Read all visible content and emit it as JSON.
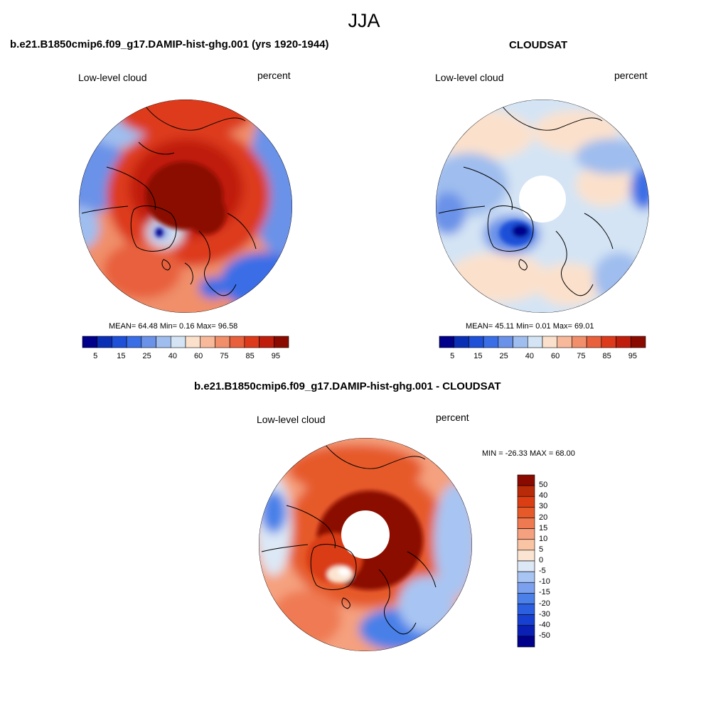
{
  "title": "JJA",
  "colors": {
    "sequential": [
      "#00008b",
      "#0a2fb5",
      "#1e50d8",
      "#3a6ee6",
      "#6a92e8",
      "#9fbdee",
      "#d4e4f4",
      "#fbe1cc",
      "#f8b99a",
      "#f08f6a",
      "#e8603c",
      "#dd3a1c",
      "#c01e0c",
      "#8b0a00"
    ],
    "diverging": [
      "#00008b",
      "#0a20b5",
      "#1840d0",
      "#2b5fe0",
      "#4a80e8",
      "#7aa0ee",
      "#a8c4f2",
      "#dce8f6",
      "#fbe5d2",
      "#f9c4a4",
      "#f5a07e",
      "#ef7a52",
      "#e65a2a",
      "#da3e12",
      "#b82a08",
      "#8b0a00"
    ],
    "panel_bg": "#ffffff",
    "coast": "#000000"
  },
  "panels": [
    {
      "title": "b.e21.B1850cmip6.f09_g17.DAMIP-hist-ghg.001 (yrs 1920-1944)",
      "left_label": "Low-level cloud",
      "right_label": "percent",
      "stats": "MEAN=  64.48  Min=   0.16  Max=  96.58",
      "labelbar_ticks": [
        "5",
        "15",
        "25",
        "40",
        "60",
        "75",
        "85",
        "95"
      ]
    },
    {
      "title": "CLOUDSAT",
      "left_label": "Low-level cloud",
      "right_label": "percent",
      "stats": "MEAN=  45.11  Min=   0.01  Max=  69.01",
      "labelbar_ticks": [
        "5",
        "15",
        "25",
        "40",
        "60",
        "75",
        "85",
        "95"
      ]
    },
    {
      "title": "b.e21.B1850cmip6.f09_g17.DAMIP-hist-ghg.001 - CLOUDSAT",
      "left_label": "Low-level cloud",
      "right_label": "percent",
      "stats": "MIN = -26.33 MAX =  68.00",
      "labelbar_ticks": [
        "50",
        "40",
        "30",
        "20",
        "15",
        "10",
        "5",
        "0",
        "-5",
        "-10",
        "-15",
        "-20",
        "-30",
        "-40",
        "-50"
      ]
    }
  ]
}
